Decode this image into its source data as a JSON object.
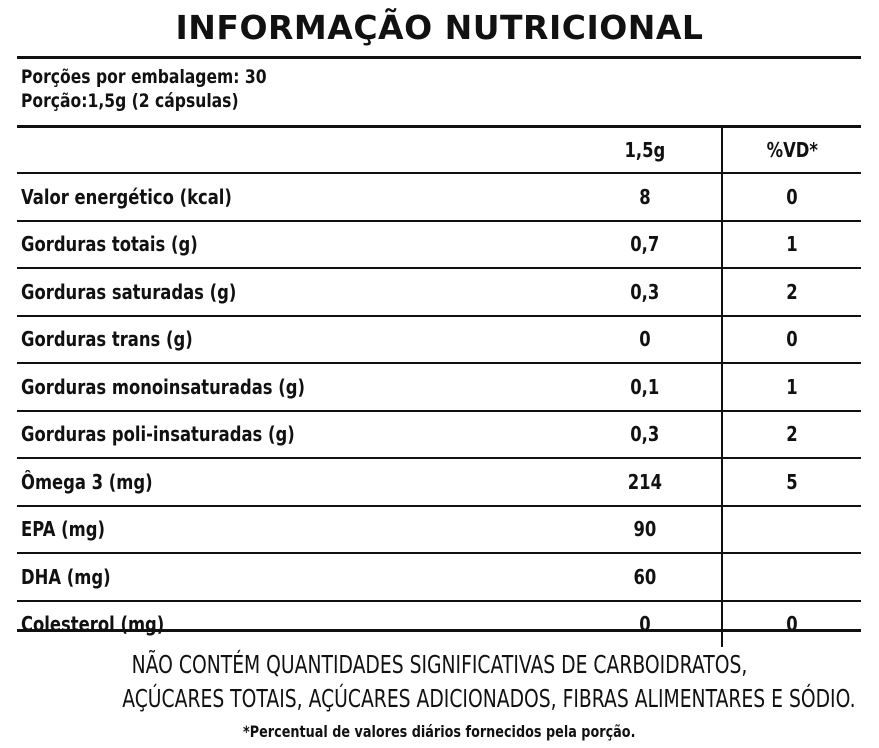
{
  "title": "INFORMAÇÃO NUTRICIONAL",
  "portions": {
    "per_package": "Porções por embalagem: 30",
    "serving": "Porção:1,5g (2 cápsulas)"
  },
  "table": {
    "header": {
      "amount": "1,5g",
      "vd": "%VD*"
    },
    "rows": [
      {
        "name": "Valor energético (kcal)",
        "amount": "8",
        "vd": "0"
      },
      {
        "name": "Gorduras totais (g)",
        "amount": "0,7",
        "vd": "1"
      },
      {
        "name": "Gorduras saturadas (g)",
        "amount": "0,3",
        "vd": "2"
      },
      {
        "name": "Gorduras trans (g)",
        "amount": "0",
        "vd": "0"
      },
      {
        "name": "Gorduras monoinsaturadas (g)",
        "amount": "0,1",
        "vd": "1"
      },
      {
        "name": "Gorduras poli-insaturadas (g)",
        "amount": "0,3",
        "vd": "2"
      },
      {
        "name": "Ômega 3 (mg)",
        "amount": "214",
        "vd": "5"
      },
      {
        "name": "EPA (mg)",
        "amount": "90",
        "vd": ""
      },
      {
        "name": "DHA (mg)",
        "amount": "60",
        "vd": ""
      },
      {
        "name": "Colesterol (mg)",
        "amount": "0",
        "vd": "0"
      }
    ]
  },
  "notes": {
    "line1": "NÃO CONTÉM QUANTIDADES SIGNIFICATIVAS DE CARBOIDRATOS,",
    "line2": "AÇÚCARES TOTAIS, AÇÚCARES ADICIONADOS, FIBRAS ALIMENTARES E SÓDIO.",
    "footnote": "*Percentual de valores diários fornecidos pela porção."
  }
}
